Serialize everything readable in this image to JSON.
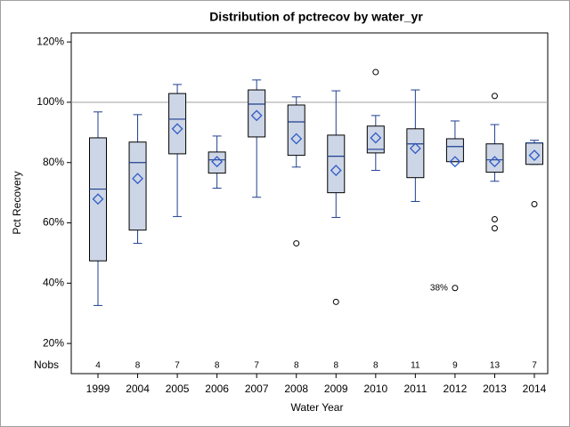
{
  "chart_data": {
    "type": "box",
    "title": "Distribution of pctrecov by water_yr",
    "x_label": "Water Year",
    "y_label": "Pct Recovery",
    "nobs_label": "Nobs",
    "ylim": [
      10,
      123
    ],
    "yticks": [
      {
        "value": 20,
        "label": "20%"
      },
      {
        "value": 40,
        "label": "40%"
      },
      {
        "value": 60,
        "label": "60%"
      },
      {
        "value": 80,
        "label": "80%"
      },
      {
        "value": 100,
        "label": "100%"
      },
      {
        "value": 120,
        "label": "120%"
      }
    ],
    "reference_line": 100,
    "box_color": "#cdd6e6",
    "line_color": "#1f3f8f",
    "mean_color": "#2f5bc8",
    "boxes": [
      {
        "category": "1999",
        "whisker_low": 32.6,
        "q1": 47.4,
        "median": 71.2,
        "q3": 88.2,
        "whisker_high": 96.8,
        "mean": 67.9,
        "n": 4,
        "outliers": []
      },
      {
        "category": "2004",
        "whisker_low": 53.2,
        "q1": 57.6,
        "median": 80,
        "q3": 86.8,
        "whisker_high": 95.9,
        "mean": 74.7,
        "n": 8,
        "outliers": []
      },
      {
        "category": "2005",
        "whisker_low": 62.1,
        "q1": 82.9,
        "median": 94.4,
        "q3": 102.9,
        "whisker_high": 105.9,
        "mean": 91.2,
        "n": 7,
        "outliers": []
      },
      {
        "category": "2006",
        "whisker_low": 71.5,
        "q1": 76.5,
        "median": 80.9,
        "q3": 83.5,
        "whisker_high": 88.8,
        "mean": 80.3,
        "n": 8,
        "outliers": []
      },
      {
        "category": "2007",
        "whisker_low": 68.5,
        "q1": 88.5,
        "median": 99.4,
        "q3": 104.1,
        "whisker_high": 107.4,
        "mean": 95.6,
        "n": 7,
        "outliers": []
      },
      {
        "category": "2008",
        "whisker_low": 78.5,
        "q1": 82.4,
        "median": 93.5,
        "q3": 99.1,
        "whisker_high": 101.8,
        "mean": 87.9,
        "n": 8,
        "outliers": [
          53.2
        ]
      },
      {
        "category": "2009",
        "whisker_low": 61.8,
        "q1": 70,
        "median": 82.1,
        "q3": 89.1,
        "whisker_high": 103.8,
        "mean": 77.4,
        "n": 8,
        "outliers": [
          33.8
        ]
      },
      {
        "category": "2010",
        "whisker_low": 77.4,
        "q1": 83.2,
        "median": 84.4,
        "q3": 92.1,
        "whisker_high": 95.6,
        "mean": 88.2,
        "n": 8,
        "outliers": [
          110
        ]
      },
      {
        "category": "2011",
        "whisker_low": 67.1,
        "q1": 75,
        "median": 86.2,
        "q3": 91.2,
        "whisker_high": 104.1,
        "mean": 84.7,
        "n": 11,
        "outliers": []
      },
      {
        "category": "2012",
        "whisker_low": 80.3,
        "q1": 80.3,
        "median": 85.3,
        "q3": 87.9,
        "whisker_high": 93.8,
        "mean": 80.3,
        "n": 9,
        "outliers": [
          38.4
        ],
        "outlier_labels": [
          "38%"
        ]
      },
      {
        "category": "2013",
        "whisker_low": 73.8,
        "q1": 76.8,
        "median": 80.9,
        "q3": 86.2,
        "whisker_high": 92.6,
        "mean": 80.3,
        "n": 13,
        "outliers": [
          102.1,
          61.2,
          58.2
        ]
      },
      {
        "category": "2014",
        "whisker_low": 79.4,
        "q1": 79.4,
        "median": 86.5,
        "q3": 86.5,
        "whisker_high": 87.4,
        "mean": 82.4,
        "n": 7,
        "outliers": [
          66.2
        ]
      }
    ]
  }
}
